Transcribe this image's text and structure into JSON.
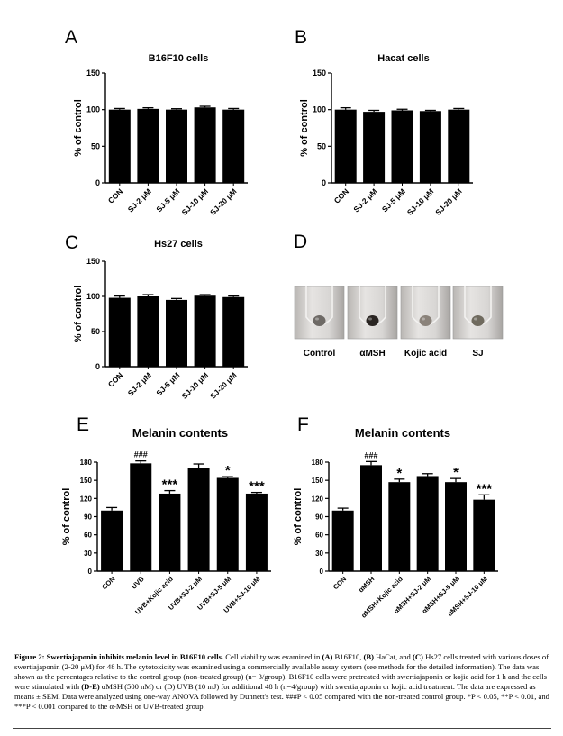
{
  "chart_data": [
    {
      "panel": "A",
      "type": "bar",
      "title": "B16F10 cells",
      "ylabel": "% of control",
      "ylim": [
        0,
        150
      ],
      "yticks": [
        "0",
        "50",
        "100",
        "150"
      ],
      "categories": [
        "CON",
        "SJ-2 μM",
        "SJ-5 μM",
        "SJ-10 μM",
        "SJ-20 μM"
      ],
      "values": [
        100,
        101,
        100,
        103,
        100
      ],
      "errors": [
        1.5,
        1.5,
        1.2,
        1.5,
        1.5
      ],
      "annotations": [
        "",
        "",
        "",
        "",
        ""
      ]
    },
    {
      "panel": "B",
      "type": "bar",
      "title": "Hacat cells",
      "ylabel": "% of control",
      "ylim": [
        0,
        150
      ],
      "yticks": [
        "0",
        "50",
        "100",
        "150"
      ],
      "categories": [
        "CON",
        "SJ-2 μM",
        "SJ-5 μM",
        "SJ-10 μM",
        "SJ-20 μM"
      ],
      "values": [
        100,
        97,
        99,
        98,
        100
      ],
      "errors": [
        2.5,
        2,
        1.5,
        1,
        1.5
      ],
      "annotations": [
        "",
        "",
        "",
        "",
        ""
      ]
    },
    {
      "panel": "C",
      "type": "bar",
      "title": "Hs27 cells",
      "ylabel": "% of control",
      "ylim": [
        0,
        150
      ],
      "yticks": [
        "0",
        "50",
        "100",
        "150"
      ],
      "categories": [
        "CON",
        "SJ-2 μM",
        "SJ-5 μM",
        "SJ-10 μM",
        "SJ-20 μM"
      ],
      "values": [
        98,
        100,
        95,
        101,
        99
      ],
      "errors": [
        2.5,
        2.5,
        2,
        1.5,
        1.5
      ],
      "annotations": [
        "",
        "",
        "",
        "",
        ""
      ]
    },
    {
      "panel": "E",
      "type": "bar",
      "title": "Melanin contents",
      "ylabel": "% of control",
      "ylim": [
        0,
        180
      ],
      "yticks": [
        "0",
        "30",
        "60",
        "90",
        "120",
        "150",
        "180"
      ],
      "categories": [
        "CON",
        "UVB",
        "UVB+Kojic acid",
        "UVB+SJ-2 μM",
        "UVB+SJ-5 μM",
        "UVB+SJ-10 μM"
      ],
      "values": [
        100,
        178,
        128,
        170,
        154,
        128
      ],
      "errors": [
        5,
        4,
        5,
        7,
        2,
        2
      ],
      "annotations": [
        "",
        "###",
        "***",
        "",
        "*",
        "***"
      ]
    },
    {
      "panel": "F",
      "type": "bar",
      "title": "Melanin contents",
      "ylabel": "% of control",
      "ylim": [
        0,
        180
      ],
      "yticks": [
        "0",
        "30",
        "60",
        "90",
        "120",
        "150",
        "180"
      ],
      "categories": [
        "CON",
        "αMSH",
        "αMSH+Kojic acid",
        "αMSH+SJ-2 μM",
        "αMSH+SJ-5 μM",
        "αMSH+SJ-10 μM"
      ],
      "values": [
        100,
        175,
        147,
        157,
        147,
        118
      ],
      "errors": [
        4,
        6,
        5,
        4,
        6,
        8
      ],
      "annotations": [
        "",
        "###",
        "*",
        "",
        "*",
        "***"
      ]
    }
  ],
  "panel_d": {
    "letter": "D",
    "tubes": [
      {
        "label": "Control",
        "pellet_color": "#6e6a66"
      },
      {
        "label": "αMSH",
        "pellet_color": "#2a2522"
      },
      {
        "label": "Kojic acid",
        "pellet_color": "#8a827a"
      },
      {
        "label": "SJ",
        "pellet_color": "#6f6a5e"
      }
    ]
  },
  "caption": {
    "figure_label": "Figure 2:",
    "bold_title": "Swertiajaponin inhibits melanin level in B16F10 cells.",
    "text_1": " Cell viability was examined in ",
    "a_label": "(A)",
    "text_2": " B16F10, ",
    "b_label": "(B)",
    "text_3": " HaCat, and ",
    "c_label": "(C)",
    "text_4": " Hs27 cells treated with various doses of swertiajaponin (2-20 μM) for 48 h.  The cytotoxicity was examined using a commercially available assay system (see methods for the detailed information). The data was shown as the percentages relative to the control group (non-treated group) (n= 3/group). B16F10 cells were pretreated with swertiajaponin or kojic acid for 1 h and the cells were stimulated with ",
    "de_label": "(D-E)",
    "text_5": " αMSH (500 nM) or (D) UVB (10 mJ) for additional 48 h (n=4/group) with swertiajaponin or kojic acid treatment. The data are expressed as means ± SEM. Data were analyzed using one-way ANOVA followed by Dunnett's test. ###P < 0.05 compared with the non-treated control group. *P < 0.05, **P < 0.01, and ***P < 0.001 compared to the α-MSH or UVB-treated group."
  }
}
